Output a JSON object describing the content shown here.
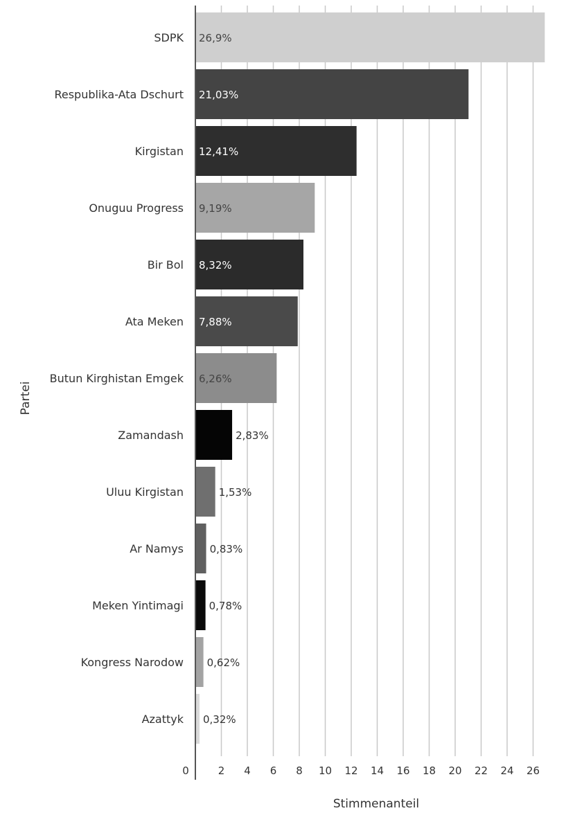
{
  "chart_data": {
    "type": "bar",
    "orientation": "horizontal",
    "xlabel": "Stimmenanteil",
    "ylabel": "Partei",
    "xlim": [
      0,
      27
    ],
    "xticks": [
      0,
      2,
      4,
      6,
      8,
      10,
      12,
      14,
      16,
      18,
      20,
      22,
      24,
      26
    ],
    "grid": true,
    "categories": [
      "SDPK",
      "Respublika-Ata Dschurt",
      "Kirgistan",
      "Onuguu Progress",
      "Bir Bol",
      "Ata Meken",
      "Butun Kirghistan Emgek",
      "Zamandash",
      "Uluu Kirgistan",
      "Ar Namys",
      "Meken Yintimagi",
      "Kongress Narodow",
      "Azattyk"
    ],
    "values": [
      26.9,
      21.03,
      12.41,
      9.19,
      8.32,
      7.88,
      6.26,
      2.83,
      1.53,
      0.83,
      0.78,
      0.62,
      0.32
    ],
    "data_labels": [
      "26,9%",
      "21,03%",
      "12,41%",
      "9,19%",
      "8,32%",
      "7,88%",
      "6,26%",
      "2,83%",
      "1,53%",
      "0,83%",
      "0,78%",
      "0,62%",
      "0,32%"
    ],
    "colors": [
      "#cfcfcf",
      "#444444",
      "#2e2e2e",
      "#a6a6a6",
      "#2b2b2b",
      "#4a4a4a",
      "#8c8c8c",
      "#050505",
      "#6f6f6f",
      "#606060",
      "#0a0a0a",
      "#a3a3a3",
      "#d9d9d9"
    ],
    "label_colors": [
      "#444444",
      "#ffffff",
      "#ffffff",
      "#444444",
      "#ffffff",
      "#ffffff",
      "#444444",
      "#333333",
      "#333333",
      "#333333",
      "#333333",
      "#333333",
      "#333333"
    ]
  }
}
